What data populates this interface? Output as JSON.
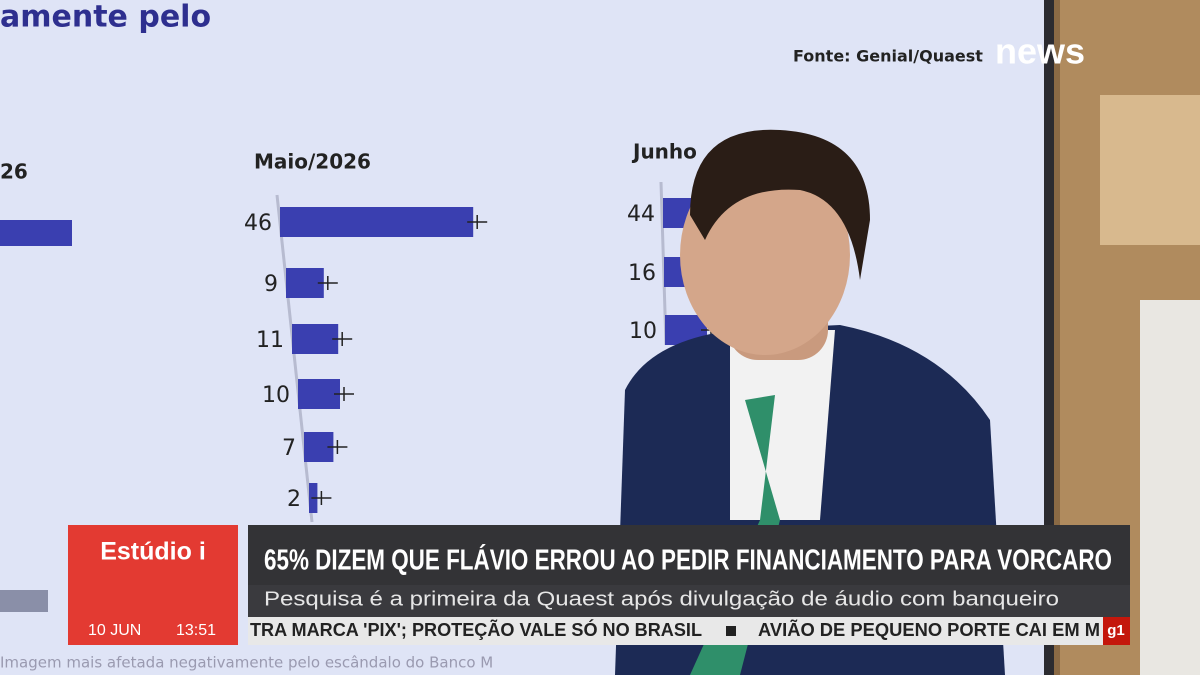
{
  "screen": {
    "title_fragment": "amente pelo",
    "source": "Fonte: Genial/Quaest",
    "left_column_header": "26",
    "columns": [
      {
        "header": "Maio/2026",
        "values": [
          46,
          9,
          11,
          10,
          7,
          2
        ]
      },
      {
        "header": "Junho",
        "values": [
          44,
          16,
          10
        ]
      }
    ],
    "footnote": "Imagem mais afetada negativamente pelo escândalo do Banco M"
  },
  "logo": "news",
  "lower_third": {
    "program": "Estúdio i",
    "headline": "65% DIZEM QUE FLÁVIO ERROU AO PEDIR FINANCIAMENTO PARA VORCARO",
    "subheadline": "Pesquisa é a primeira da Quaest após divulgação de áudio com banqueiro",
    "date": "10 JUN",
    "time": "13:51",
    "ticker": [
      "TRA MARCA 'PIX'; PROTEÇÃO VALE SÓ NO BRASIL",
      "AVIÃO DE PEQUENO PORTE CAI EM M"
    ],
    "badge": "g1"
  }
}
